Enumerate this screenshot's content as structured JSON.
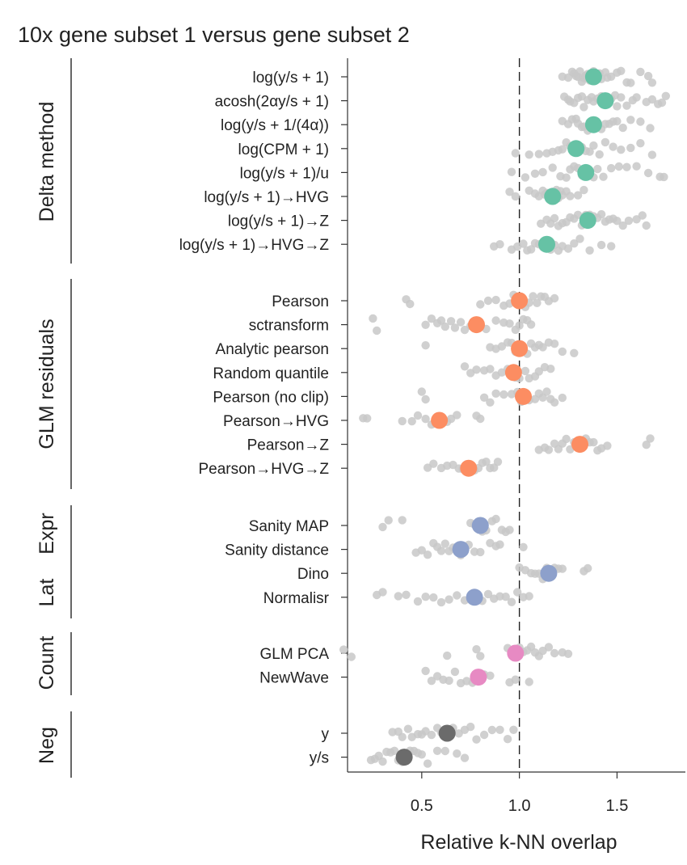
{
  "chart_data": {
    "type": "scatter",
    "title": "10x gene subset 1 versus gene subset 2",
    "xlabel": "Relative k-NN overlap",
    "xlim": [
      0.12,
      1.85
    ],
    "x_ticks": [
      {
        "value": 0.5,
        "label": "0.5"
      },
      {
        "value": 1.0,
        "label": "1.0"
      },
      {
        "value": 1.5,
        "label": "1.5"
      }
    ],
    "reference_line": 1.0,
    "colors": {
      "delta": "#66c2a5",
      "glm": "#fc8d62",
      "latent": "#8da0cb",
      "count": "#e78ac3",
      "neg": "#6b6b6b",
      "points": "#c8c8c8"
    },
    "groups": [
      {
        "name": "Delta method",
        "color": "#66c2a5",
        "methods": [
          {
            "label": "log(y/s + 1)",
            "mean": 1.38,
            "points": [
              1.22,
              1.25,
              1.27,
              1.28,
              1.29,
              1.3,
              1.31,
              1.32,
              1.33,
              1.34,
              1.35,
              1.36,
              1.37,
              1.38,
              1.4,
              1.41,
              1.42,
              1.44,
              1.45,
              1.47,
              1.5,
              1.52,
              1.55,
              1.57,
              1.62,
              1.66,
              1.68
            ]
          },
          {
            "label": "acosh(2αy/s + 1)",
            "mean": 1.44,
            "points": [
              1.23,
              1.25,
              1.26,
              1.28,
              1.3,
              1.32,
              1.33,
              1.35,
              1.37,
              1.38,
              1.4,
              1.42,
              1.43,
              1.45,
              1.47,
              1.49,
              1.5,
              1.52,
              1.55,
              1.58,
              1.6,
              1.65,
              1.68,
              1.71,
              1.73,
              1.75
            ]
          },
          {
            "label": "log(y/s + 1/(4α))",
            "mean": 1.38,
            "points": [
              1.22,
              1.25,
              1.27,
              1.29,
              1.3,
              1.32,
              1.33,
              1.35,
              1.36,
              1.37,
              1.39,
              1.4,
              1.42,
              1.44,
              1.46,
              1.48,
              1.5,
              1.53,
              1.57,
              1.62,
              1.67
            ]
          },
          {
            "label": "log(CPM + 1)",
            "mean": 1.29,
            "points": [
              0.98,
              1.05,
              1.1,
              1.14,
              1.17,
              1.2,
              1.22,
              1.24,
              1.26,
              1.28,
              1.3,
              1.32,
              1.34,
              1.36,
              1.38,
              1.41,
              1.44,
              1.48,
              1.52,
              1.57,
              1.62,
              1.68
            ]
          },
          {
            "label": "log(y/s + 1)/u",
            "mean": 1.34,
            "points": [
              0.96,
              1.03,
              1.08,
              1.12,
              1.17,
              1.21,
              1.24,
              1.26,
              1.28,
              1.3,
              1.32,
              1.34,
              1.36,
              1.38,
              1.4,
              1.43,
              1.47,
              1.51,
              1.55,
              1.6,
              1.66,
              1.72,
              1.74
            ]
          },
          {
            "label": "log(y/s + 1)→HVG",
            "mean": 1.17,
            "points": [
              0.95,
              0.98,
              1.05,
              1.08,
              1.1,
              1.12,
              1.13,
              1.14,
              1.15,
              1.16,
              1.17,
              1.18,
              1.19,
              1.2,
              1.21,
              1.22,
              1.24,
              1.26,
              1.3,
              1.33
            ]
          },
          {
            "label": "log(y/s + 1)→Z",
            "mean": 1.35,
            "points": [
              1.11,
              1.14,
              1.16,
              1.18,
              1.2,
              1.22,
              1.24,
              1.26,
              1.28,
              1.3,
              1.32,
              1.34,
              1.36,
              1.38,
              1.4,
              1.42,
              1.44,
              1.46,
              1.48,
              1.5,
              1.53,
              1.56,
              1.6,
              1.63,
              1.65
            ]
          },
          {
            "label": "log(y/s + 1)→HVG→Z",
            "mean": 1.14,
            "points": [
              0.87,
              0.9,
              0.96,
              0.99,
              1.02,
              1.04,
              1.06,
              1.08,
              1.1,
              1.12,
              1.14,
              1.16,
              1.18,
              1.2,
              1.22,
              1.25,
              1.28,
              1.31,
              1.36,
              1.42,
              1.47
            ]
          }
        ]
      },
      {
        "name": "GLM residuals",
        "color": "#fc8d62",
        "methods": [
          {
            "label": "Pearson",
            "mean": 1.0,
            "points": [
              0.42,
              0.44,
              0.8,
              0.84,
              0.88,
              0.92,
              0.95,
              0.97,
              0.99,
              1.01,
              1.03,
              1.05,
              1.07,
              1.09,
              1.11,
              1.13,
              1.15,
              1.18
            ]
          },
          {
            "label": "sctransform",
            "mean": 0.78,
            "points": [
              0.25,
              0.27,
              0.52,
              0.55,
              0.58,
              0.6,
              0.62,
              0.65,
              0.67,
              0.7,
              0.72,
              0.75,
              0.8,
              0.83,
              0.88,
              0.92,
              0.95,
              0.98,
              1.0,
              1.02,
              1.04,
              1.06
            ]
          },
          {
            "label": "Analytic pearson",
            "mean": 1.0,
            "points": [
              0.52,
              0.85,
              0.88,
              0.91,
              0.94,
              0.96,
              0.98,
              1.0,
              1.02,
              1.04,
              1.06,
              1.08,
              1.1,
              1.12,
              1.15,
              1.18,
              1.22,
              1.28
            ]
          },
          {
            "label": "Random quantile",
            "mean": 0.97,
            "points": [
              0.72,
              0.75,
              0.78,
              0.82,
              0.85,
              0.88,
              0.91,
              0.94,
              0.96,
              0.98,
              1.0,
              1.03,
              1.05,
              1.08,
              1.1,
              1.13,
              1.16
            ]
          },
          {
            "label": "Pearson (no clip)",
            "mean": 1.02,
            "points": [
              0.5,
              0.52,
              0.82,
              0.85,
              0.88,
              0.92,
              0.96,
              0.99,
              1.01,
              1.03,
              1.05,
              1.08,
              1.1,
              1.12,
              1.14,
              1.16,
              1.18,
              1.22
            ]
          },
          {
            "label": "Pearson→HVG",
            "mean": 0.59,
            "points": [
              0.2,
              0.22,
              0.4,
              0.45,
              0.48,
              0.52,
              0.55,
              0.57,
              0.59,
              0.61,
              0.63,
              0.65,
              0.68,
              0.78,
              0.8
            ]
          },
          {
            "label": "Pearson→Z",
            "mean": 1.31,
            "points": [
              1.1,
              1.13,
              1.15,
              1.18,
              1.2,
              1.22,
              1.24,
              1.26,
              1.28,
              1.3,
              1.32,
              1.34,
              1.36,
              1.38,
              1.4,
              1.42,
              1.45,
              1.65,
              1.67
            ]
          },
          {
            "label": "Pearson→HVG→Z",
            "mean": 0.74,
            "points": [
              0.53,
              0.56,
              0.6,
              0.63,
              0.66,
              0.69,
              0.71,
              0.73,
              0.75,
              0.77,
              0.79,
              0.81,
              0.83,
              0.85,
              0.87,
              0.89
            ]
          }
        ]
      },
      {
        "name": "Lat Expr",
        "color": "#8da0cb",
        "methods": [
          {
            "label": "Sanity MAP",
            "mean": 0.8,
            "points": [
              0.3,
              0.33,
              0.4,
              0.75,
              0.77,
              0.79,
              0.81,
              0.83,
              0.86,
              0.88,
              0.91,
              0.93,
              0.95
            ]
          },
          {
            "label": "Sanity distance",
            "mean": 0.7,
            "points": [
              0.47,
              0.5,
              0.53,
              0.56,
              0.58,
              0.6,
              0.62,
              0.64,
              0.66,
              0.68,
              0.7,
              0.72,
              0.74,
              0.77,
              0.8,
              0.85,
              0.88,
              0.9,
              1.02
            ]
          },
          {
            "label": "Dino",
            "mean": 1.15,
            "points": [
              1.0,
              1.03,
              1.06,
              1.08,
              1.1,
              1.12,
              1.14,
              1.16,
              1.18,
              1.2,
              1.22,
              1.33,
              1.35
            ]
          },
          {
            "label": "Normalisr",
            "mean": 0.77,
            "points": [
              0.27,
              0.3,
              0.38,
              0.42,
              0.48,
              0.52,
              0.56,
              0.6,
              0.64,
              0.68,
              0.72,
              0.75,
              0.78,
              0.81,
              0.84,
              0.87,
              0.9,
              0.93,
              0.96,
              0.99,
              1.02,
              1.05
            ]
          }
        ]
      },
      {
        "name": "Count",
        "color": "#e78ac3",
        "methods": [
          {
            "label": "GLM PCA",
            "mean": 0.98,
            "points": [
              0.1,
              0.14,
              0.63,
              0.78,
              0.8,
              0.94,
              0.96,
              0.98,
              1.0,
              1.02,
              1.04,
              1.06,
              1.08,
              1.1,
              1.12,
              1.15,
              1.18,
              1.22,
              1.25
            ]
          },
          {
            "label": "NewWave",
            "mean": 0.79,
            "points": [
              0.52,
              0.55,
              0.58,
              0.61,
              0.64,
              0.67,
              0.7,
              0.73,
              0.76,
              0.79,
              0.82,
              0.85,
              0.95,
              0.98,
              1.05
            ]
          }
        ]
      },
      {
        "name": "Neg",
        "color": "#6b6b6b",
        "methods": [
          {
            "label": "y",
            "mean": 0.63,
            "points": [
              0.35,
              0.38,
              0.4,
              0.43,
              0.45,
              0.48,
              0.5,
              0.52,
              0.55,
              0.58,
              0.6,
              0.63,
              0.66,
              0.69,
              0.72,
              0.75,
              0.78,
              0.82,
              0.86,
              0.9,
              0.94,
              0.97
            ]
          },
          {
            "label": "y/s",
            "mean": 0.41,
            "points": [
              0.24,
              0.26,
              0.28,
              0.3,
              0.32,
              0.34,
              0.36,
              0.38,
              0.4,
              0.42,
              0.44,
              0.46,
              0.48,
              0.5,
              0.53,
              0.58,
              0.62,
              0.68,
              0.72
            ]
          }
        ]
      }
    ]
  },
  "group_labels": {
    "delta": "Delta method",
    "glm": "GLM residuals",
    "lat_top": "Expr",
    "lat_bottom": "Lat",
    "count": "Count",
    "neg": "Neg"
  }
}
